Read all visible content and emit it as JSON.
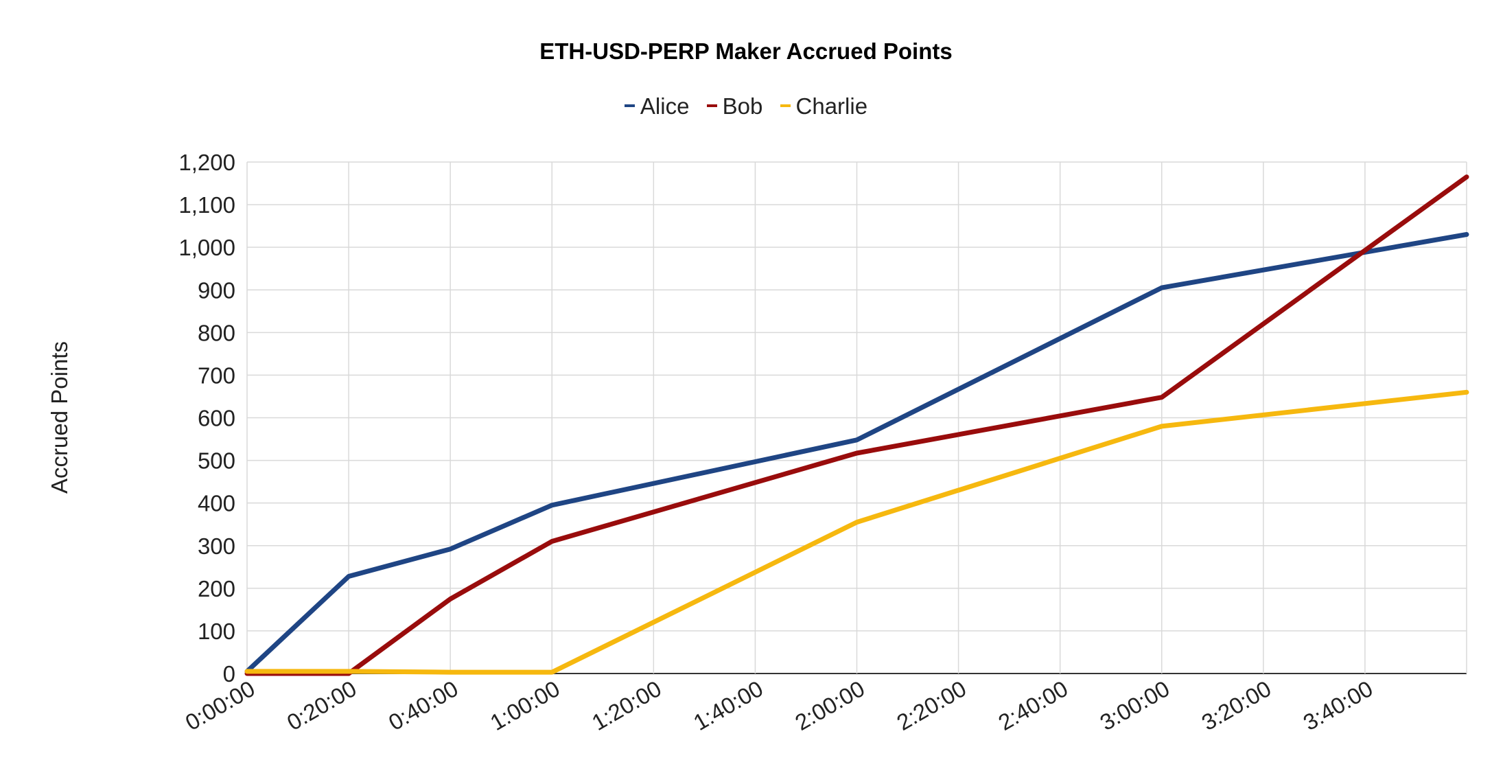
{
  "chart_data": {
    "type": "line",
    "title": "ETH-USD-PERP Maker Accrued Points",
    "xlabel": "",
    "ylabel": "Accrued Points",
    "x": [
      "0:00:00",
      "0:20:00",
      "0:40:00",
      "1:00:00",
      "2:00:00",
      "3:00:00",
      "4:00:00"
    ],
    "x_tick_labels": [
      "0:00:00",
      "0:20:00",
      "0:40:00",
      "1:00:00",
      "1:20:00",
      "1:40:00",
      "2:00:00",
      "2:20:00",
      "2:40:00",
      "3:00:00",
      "3:20:00",
      "3:40:00"
    ],
    "y_tick_labels": [
      "0",
      "100",
      "200",
      "300",
      "400",
      "500",
      "600",
      "700",
      "800",
      "900",
      "1,000",
      "1,100",
      "1,200"
    ],
    "xlim_minutes": [
      0,
      240
    ],
    "ylim": [
      0,
      1200
    ],
    "grid": true,
    "legend_position": "top",
    "series": [
      {
        "name": "Alice",
        "color": "#1f4584",
        "x_minutes": [
          0,
          20,
          40,
          60,
          120,
          180,
          240
        ],
        "values": [
          5,
          228,
          292,
          395,
          548,
          905,
          1030
        ]
      },
      {
        "name": "Bob",
        "color": "#990c0c",
        "x_minutes": [
          0,
          20,
          40,
          60,
          120,
          180,
          240
        ],
        "values": [
          0,
          0,
          175,
          310,
          517,
          648,
          1165
        ]
      },
      {
        "name": "Charlie",
        "color": "#f6b80f",
        "x_minutes": [
          0,
          20,
          40,
          60,
          120,
          180,
          240
        ],
        "values": [
          5,
          5,
          3,
          3,
          355,
          580,
          660
        ]
      }
    ]
  }
}
